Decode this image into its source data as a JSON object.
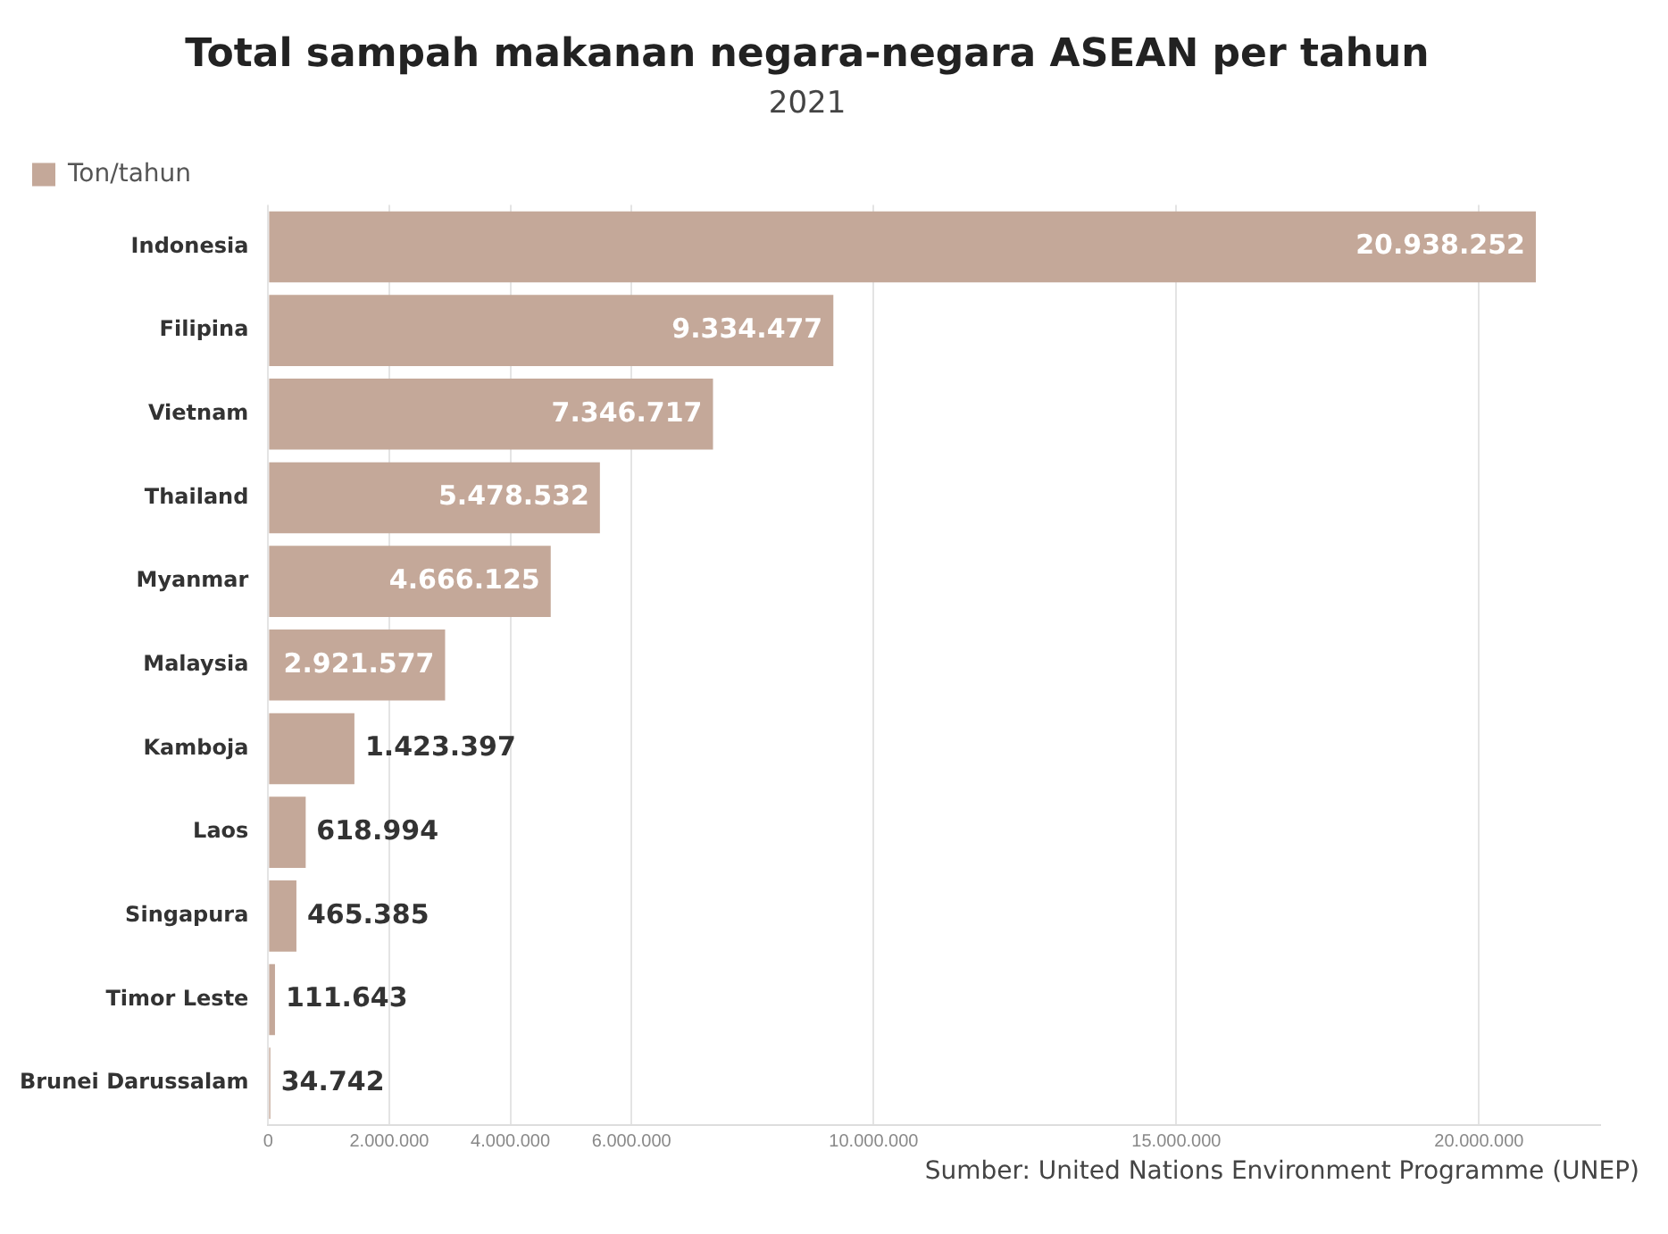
{
  "chart_data": {
    "type": "bar",
    "orientation": "horizontal",
    "title": "Total sampah makanan negara-negara ASEAN per tahun",
    "subtitle": "2021",
    "categories": [
      "Indonesia",
      "Filipina",
      "Vietnam",
      "Thailand",
      "Myanmar",
      "Malaysia",
      "Kamboja",
      "Laos",
      "Singapura",
      "Timor Leste",
      "Brunei Darussalam"
    ],
    "series": [
      {
        "name": "Ton/tahun",
        "color": "#c4a899",
        "values": [
          20938252,
          9334477,
          7346717,
          5478532,
          4666125,
          2921577,
          1423397,
          618994,
          465385,
          111643,
          34742
        ],
        "value_labels": [
          "20.938.252",
          "9.334.477",
          "7.346.717",
          "5.478.532",
          "4.666.125",
          "2.921.577",
          "1.423.397",
          "618.994",
          "465.385",
          "111.643",
          "34.742"
        ]
      }
    ],
    "xlim": [
      0,
      22000000
    ],
    "xticks": [
      0,
      {
        "value": 2000000,
        "label": "2.000.000"
      },
      {
        "value": 4000000,
        "label": "4.000.000"
      },
      {
        "value": 6000000,
        "label": "6.000.000"
      },
      {
        "value": 10000000,
        "label": "10.000.000"
      },
      {
        "value": 15000000,
        "label": "15.000.000"
      },
      {
        "value": 20000000,
        "label": "20.000.000"
      }
    ],
    "grid": "x",
    "legend": "top left",
    "annotations": [
      "Sumber: United Nations Environment Programme (UNEP)"
    ]
  }
}
